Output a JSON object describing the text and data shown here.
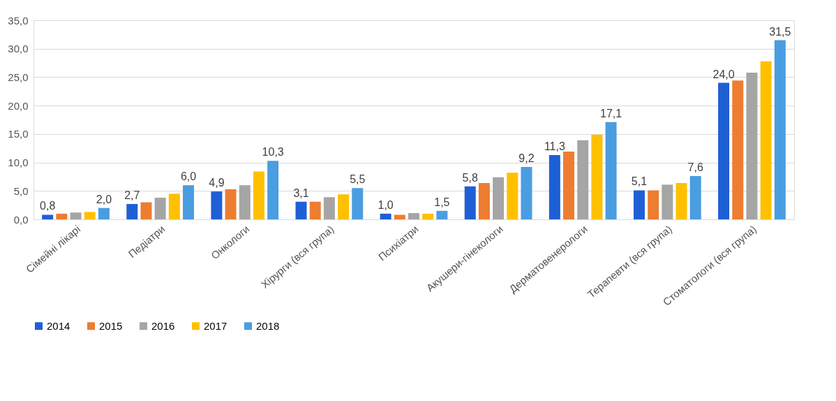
{
  "chart_data": {
    "type": "bar",
    "categories": [
      "Сімейні лікарі",
      "Педіатри",
      "Онкологи",
      "Хірурги (вся група)",
      "Психіатри",
      "Акушери-гінекологи",
      "Дерматовенерологи",
      "Терапевти (вся група)",
      "Стоматологи (вся група)"
    ],
    "series": [
      {
        "name": "2014",
        "color": "#1f5fd6",
        "values": [
          0.8,
          2.7,
          4.9,
          3.1,
          1.0,
          5.8,
          11.3,
          5.1,
          24.0
        ],
        "value_labels": [
          "0,8",
          "2,7",
          "4,9",
          "3,1",
          "1,0",
          "5,8",
          "11,3",
          "5,1",
          "24,0"
        ]
      },
      {
        "name": "2015",
        "color": "#ed7d31",
        "values": [
          1.0,
          3.0,
          5.3,
          3.1,
          0.8,
          6.4,
          11.9,
          5.1,
          24.4
        ],
        "value_labels": [
          null,
          null,
          null,
          null,
          null,
          null,
          null,
          null,
          null
        ]
      },
      {
        "name": "2016",
        "color": "#a5a5a5",
        "values": [
          1.2,
          3.8,
          6.0,
          3.9,
          1.1,
          7.4,
          13.9,
          6.1,
          25.8
        ],
        "value_labels": [
          null,
          null,
          null,
          null,
          null,
          null,
          null,
          null,
          null
        ]
      },
      {
        "name": "2017",
        "color": "#ffc000",
        "values": [
          1.3,
          4.5,
          8.4,
          4.4,
          1.0,
          8.2,
          14.9,
          6.4,
          27.8
        ],
        "value_labels": [
          null,
          null,
          null,
          null,
          null,
          null,
          null,
          null,
          null
        ]
      },
      {
        "name": "2018",
        "color": "#4a9de0",
        "values": [
          2.0,
          6.0,
          10.3,
          5.5,
          1.5,
          9.2,
          17.1,
          7.6,
          31.5
        ],
        "value_labels": [
          "2,0",
          "6,0",
          "10,3",
          "5,5",
          "1,5",
          "9,2",
          "17,1",
          "7,6",
          "31,5"
        ]
      }
    ],
    "ylim": [
      0,
      35
    ],
    "yticks": [
      {
        "value": 0,
        "label": "0,0"
      },
      {
        "value": 5,
        "label": "5,0"
      },
      {
        "value": 10,
        "label": "10,0"
      },
      {
        "value": 15,
        "label": "15,0"
      },
      {
        "value": 20,
        "label": "20,0"
      },
      {
        "value": 25,
        "label": "25,0"
      },
      {
        "value": 30,
        "label": "30,0"
      },
      {
        "value": 35,
        "label": "35,0"
      }
    ],
    "grid": "y",
    "legend": "bottom"
  }
}
